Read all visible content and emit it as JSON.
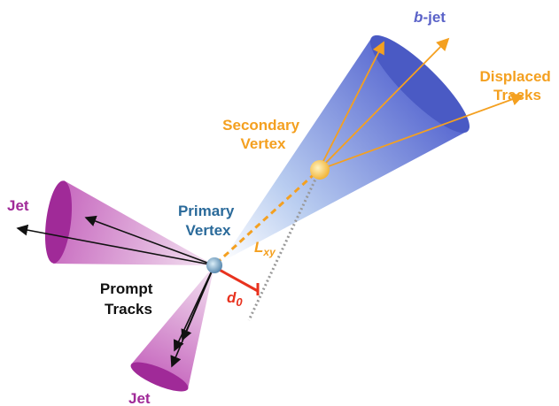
{
  "labels": {
    "bjet": {
      "italic": "b",
      "rest": "-jet"
    },
    "displaced_tracks": {
      "lines": [
        "Displaced",
        "Tracks"
      ]
    },
    "secondary_vertex": {
      "lines": [
        "Secondary",
        "Vertex"
      ]
    },
    "primary_vertex": {
      "lines": [
        "Primary",
        "Vertex"
      ]
    },
    "jet_left": "Jet",
    "prompt_tracks": {
      "lines": [
        "Prompt",
        "Tracks"
      ]
    },
    "jet_bottom": "Jet",
    "d0": {
      "main": "d",
      "sub": "0"
    },
    "lxy": {
      "main": "L",
      "sub": "xy"
    }
  }
}
